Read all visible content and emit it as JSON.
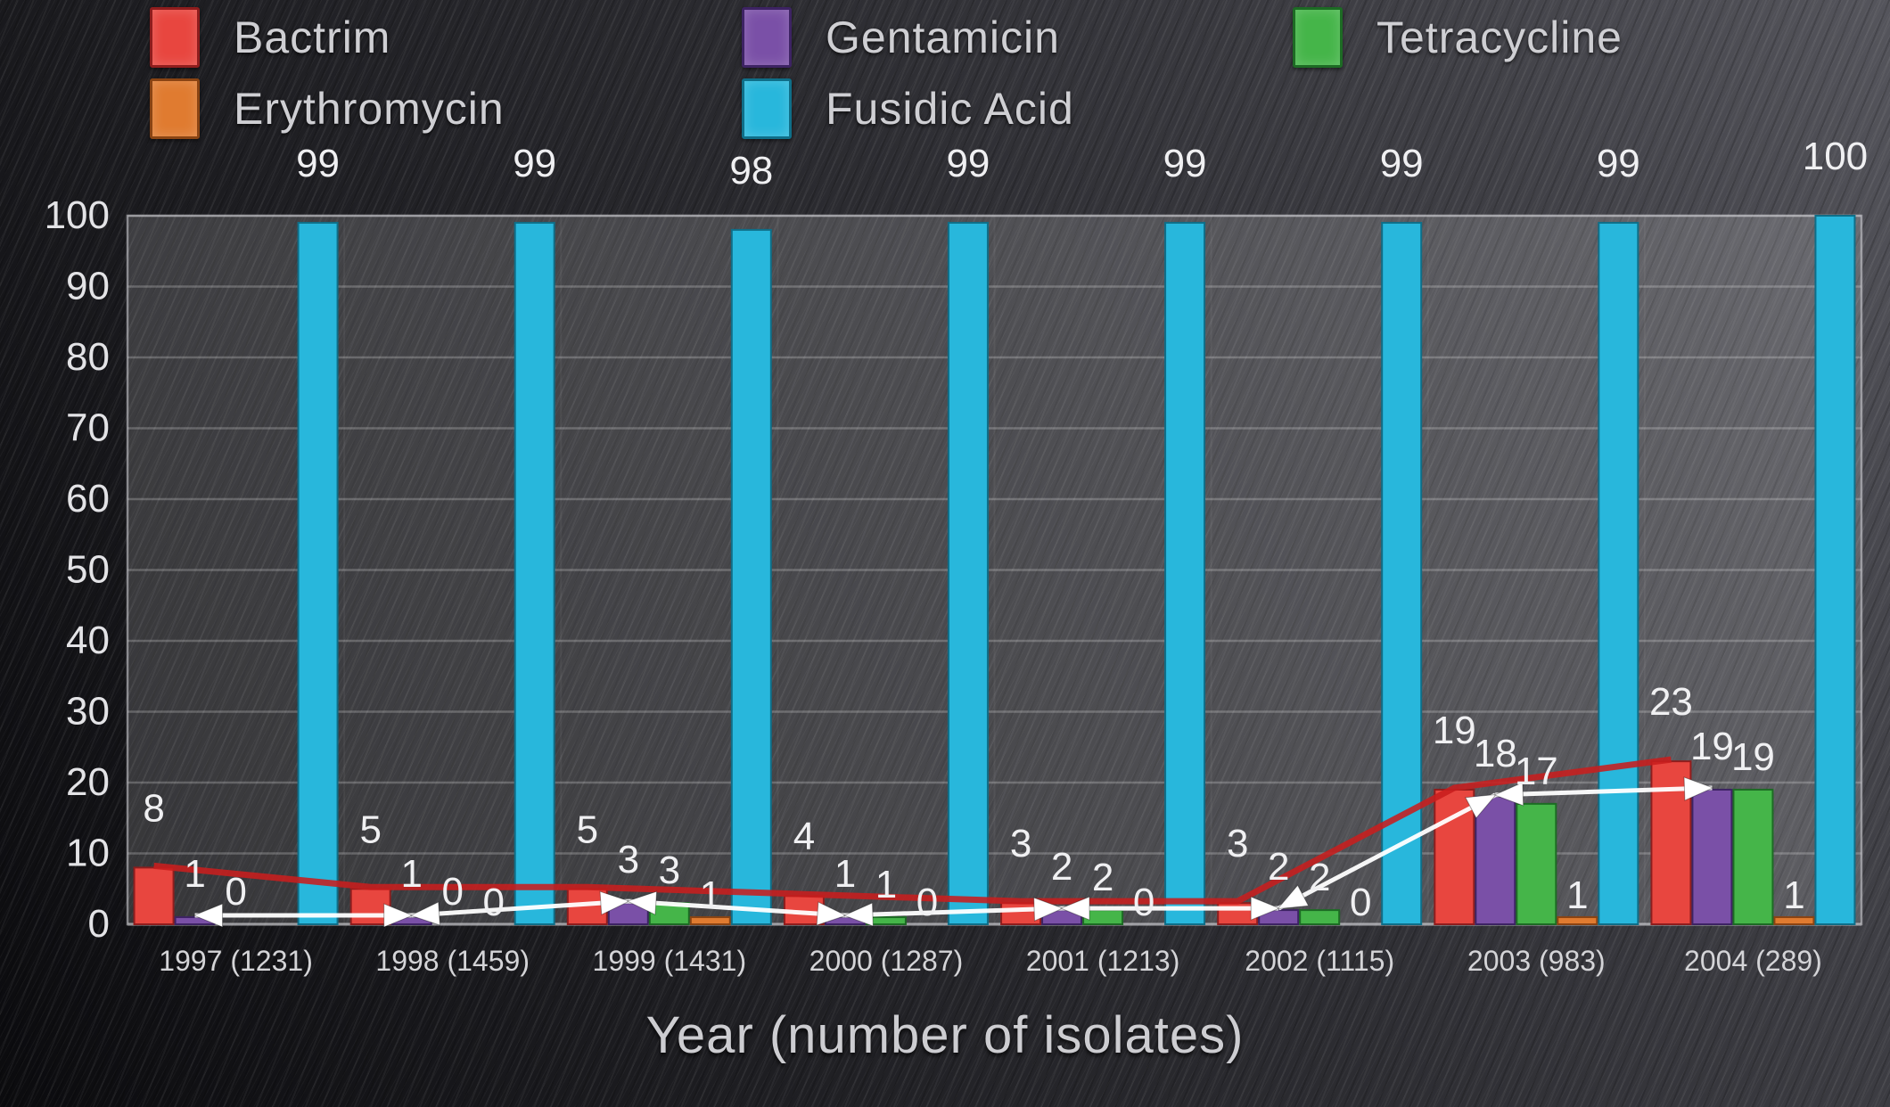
{
  "legend": {
    "rows": [
      [
        "Bactrim",
        "Gentamicin",
        "Tetracycline"
      ],
      [
        "Erythromycin",
        "Fusidic Acid"
      ]
    ]
  },
  "chart_data": {
    "type": "bar",
    "title": "",
    "xlabel": "Year (number of isolates)",
    "ylabel": "",
    "ylim": [
      0,
      100
    ],
    "yticks": [
      0,
      10,
      20,
      30,
      40,
      50,
      60,
      70,
      80,
      90,
      100
    ],
    "grid": "horizontal",
    "legend_position": "top",
    "bar_value_labels_shown": true,
    "categories": [
      "1997 (1231)",
      "1998 (1459)",
      "1999 (1431)",
      "2000 (1287)",
      "2001 (1213)",
      "2002 (1115)",
      "2003 (983)",
      "2004 (289)"
    ],
    "series": [
      {
        "name": "Bactrim",
        "color": "#e8463f",
        "edge": "#8f1d1d",
        "values": [
          8,
          5,
          5,
          4,
          3,
          3,
          19,
          23
        ],
        "trend": {
          "style": "line",
          "color": "#c81e1e"
        }
      },
      {
        "name": "Gentamicin",
        "color": "#7a50a7",
        "edge": "#3d2363",
        "values": [
          1,
          1,
          3,
          1,
          2,
          2,
          18,
          19
        ],
        "trend": {
          "style": "double-arrow-line",
          "color": "#ffffff"
        }
      },
      {
        "name": "Tetracycline",
        "color": "#45b549",
        "edge": "#1d6b24",
        "values": [
          0,
          0,
          3,
          1,
          2,
          2,
          17,
          19
        ]
      },
      {
        "name": "Erythromycin",
        "color": "#e07b30",
        "edge": "#8a4413",
        "values": [
          null,
          0,
          1,
          0,
          0,
          0,
          1,
          1
        ]
      },
      {
        "name": "Fusidic Acid",
        "color": "#28b7dc",
        "edge": "#0f6e88",
        "values": [
          99,
          99,
          98,
          99,
          99,
          99,
          99,
          100
        ]
      }
    ]
  }
}
